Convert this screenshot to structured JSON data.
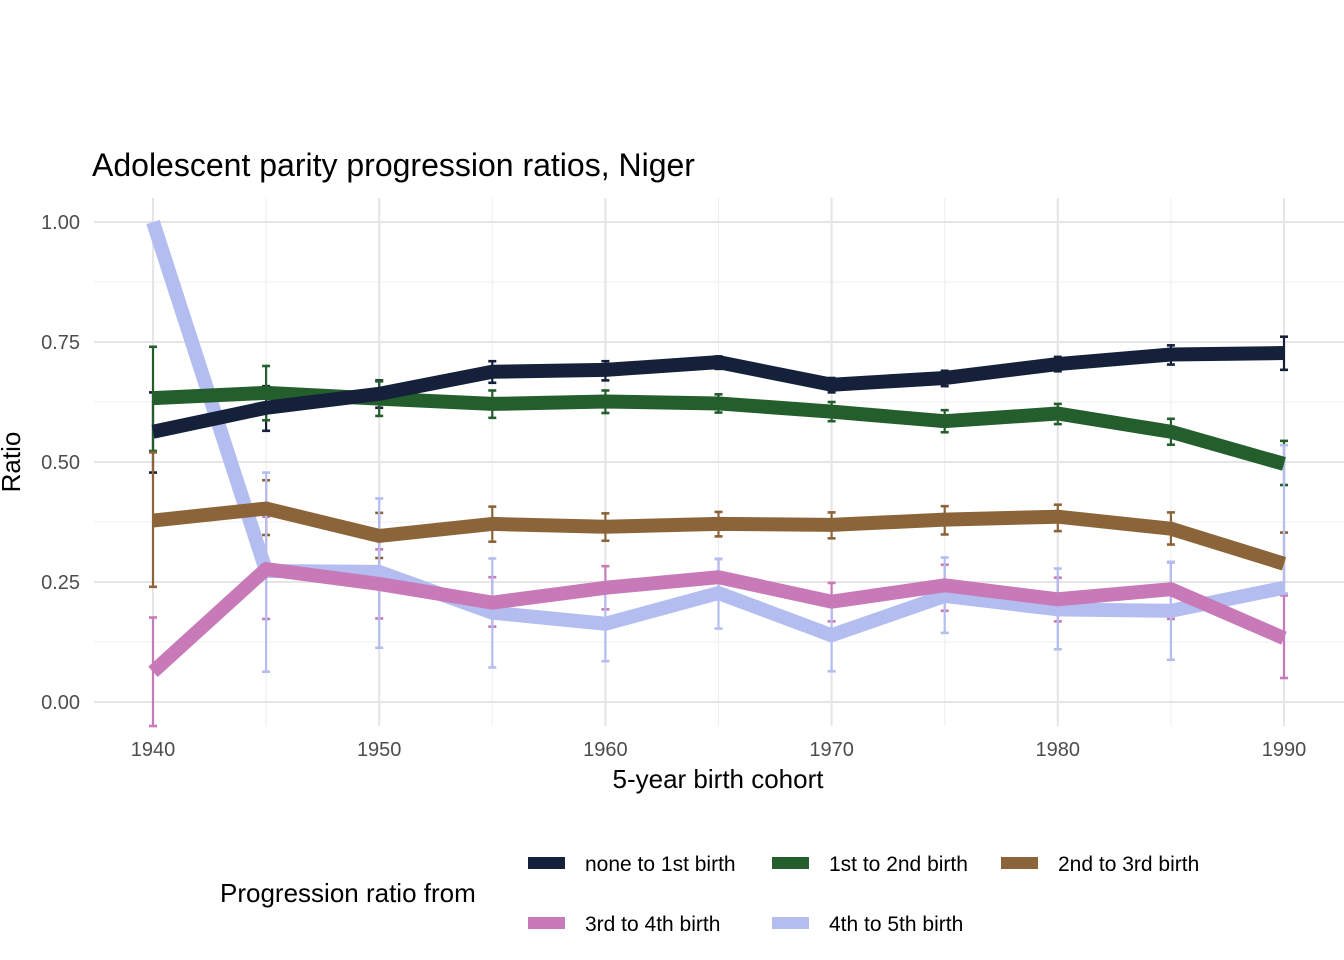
{
  "chart_data": {
    "type": "line",
    "title": "Adolescent parity progression ratios,  Niger",
    "xlabel": "5-year birth cohort",
    "ylabel": "Ratio",
    "xlim": [
      1937.5,
      1992.5
    ],
    "ylim": [
      -0.045,
      1.045
    ],
    "x_ticks": [
      1940,
      1950,
      1960,
      1970,
      1980,
      1990
    ],
    "x_tick_labels": [
      "1940",
      "1950",
      "1960",
      "1970",
      "1980",
      "1990"
    ],
    "y_ticks": [
      0,
      0.25,
      0.5,
      0.75,
      1.0
    ],
    "y_tick_labels": [
      "0.00",
      "0.25",
      "0.50",
      "0.75",
      "1.00"
    ],
    "grid": true,
    "legend": {
      "title": "Progression ratio from",
      "position": "bottom"
    },
    "x": [
      1940,
      1945,
      1950,
      1955,
      1960,
      1965,
      1970,
      1975,
      1980,
      1985,
      1990
    ],
    "series": [
      {
        "name": "none to 1st birth",
        "color": "#15213a",
        "values": [
          0.563,
          0.613,
          0.642,
          0.688,
          0.692,
          0.708,
          0.661,
          0.675,
          0.704,
          0.724,
          0.727
        ],
        "lower": [
          0.478,
          0.565,
          0.613,
          0.665,
          0.67,
          0.694,
          0.645,
          0.658,
          0.689,
          0.703,
          0.692
        ],
        "upper": [
          0.645,
          0.658,
          0.67,
          0.71,
          0.71,
          0.72,
          0.675,
          0.69,
          0.719,
          0.743,
          0.761
        ]
      },
      {
        "name": "1st to 2nd birth",
        "color": "#235e2c",
        "values": [
          0.633,
          0.644,
          0.632,
          0.621,
          0.626,
          0.622,
          0.605,
          0.585,
          0.601,
          0.563,
          0.496
        ],
        "lower": [
          0.523,
          0.587,
          0.596,
          0.592,
          0.602,
          0.603,
          0.585,
          0.562,
          0.579,
          0.536,
          0.452
        ],
        "upper": [
          0.74,
          0.7,
          0.668,
          0.649,
          0.649,
          0.641,
          0.625,
          0.608,
          0.621,
          0.59,
          0.544
        ]
      },
      {
        "name": "2nd to 3rd birth",
        "color": "#8b6539",
        "values": [
          0.378,
          0.403,
          0.346,
          0.371,
          0.365,
          0.371,
          0.369,
          0.38,
          0.386,
          0.361,
          0.288
        ],
        "lower": [
          0.24,
          0.348,
          0.3,
          0.334,
          0.336,
          0.345,
          0.341,
          0.349,
          0.356,
          0.328,
          0.223
        ],
        "upper": [
          0.52,
          0.462,
          0.394,
          0.407,
          0.393,
          0.396,
          0.395,
          0.408,
          0.411,
          0.395,
          0.353
        ]
      },
      {
        "name": "3rd to 4th birth",
        "color": "#c87ab8",
        "values": [
          0.063,
          0.277,
          0.246,
          0.207,
          0.238,
          0.26,
          0.209,
          0.243,
          0.214,
          0.235,
          0.133
        ],
        "lower": [
          -0.05,
          0.173,
          0.174,
          0.157,
          0.193,
          0.22,
          0.168,
          0.19,
          0.168,
          0.173,
          0.05
        ],
        "upper": [
          0.176,
          0.386,
          0.318,
          0.26,
          0.283,
          0.298,
          0.248,
          0.286,
          0.259,
          0.291,
          0.222
        ]
      },
      {
        "name": "4th to 5th birth",
        "color": "#b3bdf0",
        "values": [
          1.0,
          0.273,
          0.271,
          0.186,
          0.163,
          0.227,
          0.139,
          0.221,
          0.193,
          0.19,
          0.238
        ],
        "lower": [
          1.0,
          0.063,
          0.113,
          0.072,
          0.085,
          0.153,
          0.064,
          0.144,
          0.11,
          0.088,
          0.226
        ],
        "upper": [
          1.0,
          0.478,
          0.424,
          0.299,
          0.24,
          0.298,
          0.214,
          0.301,
          0.278,
          0.292,
          0.535
        ]
      }
    ]
  }
}
